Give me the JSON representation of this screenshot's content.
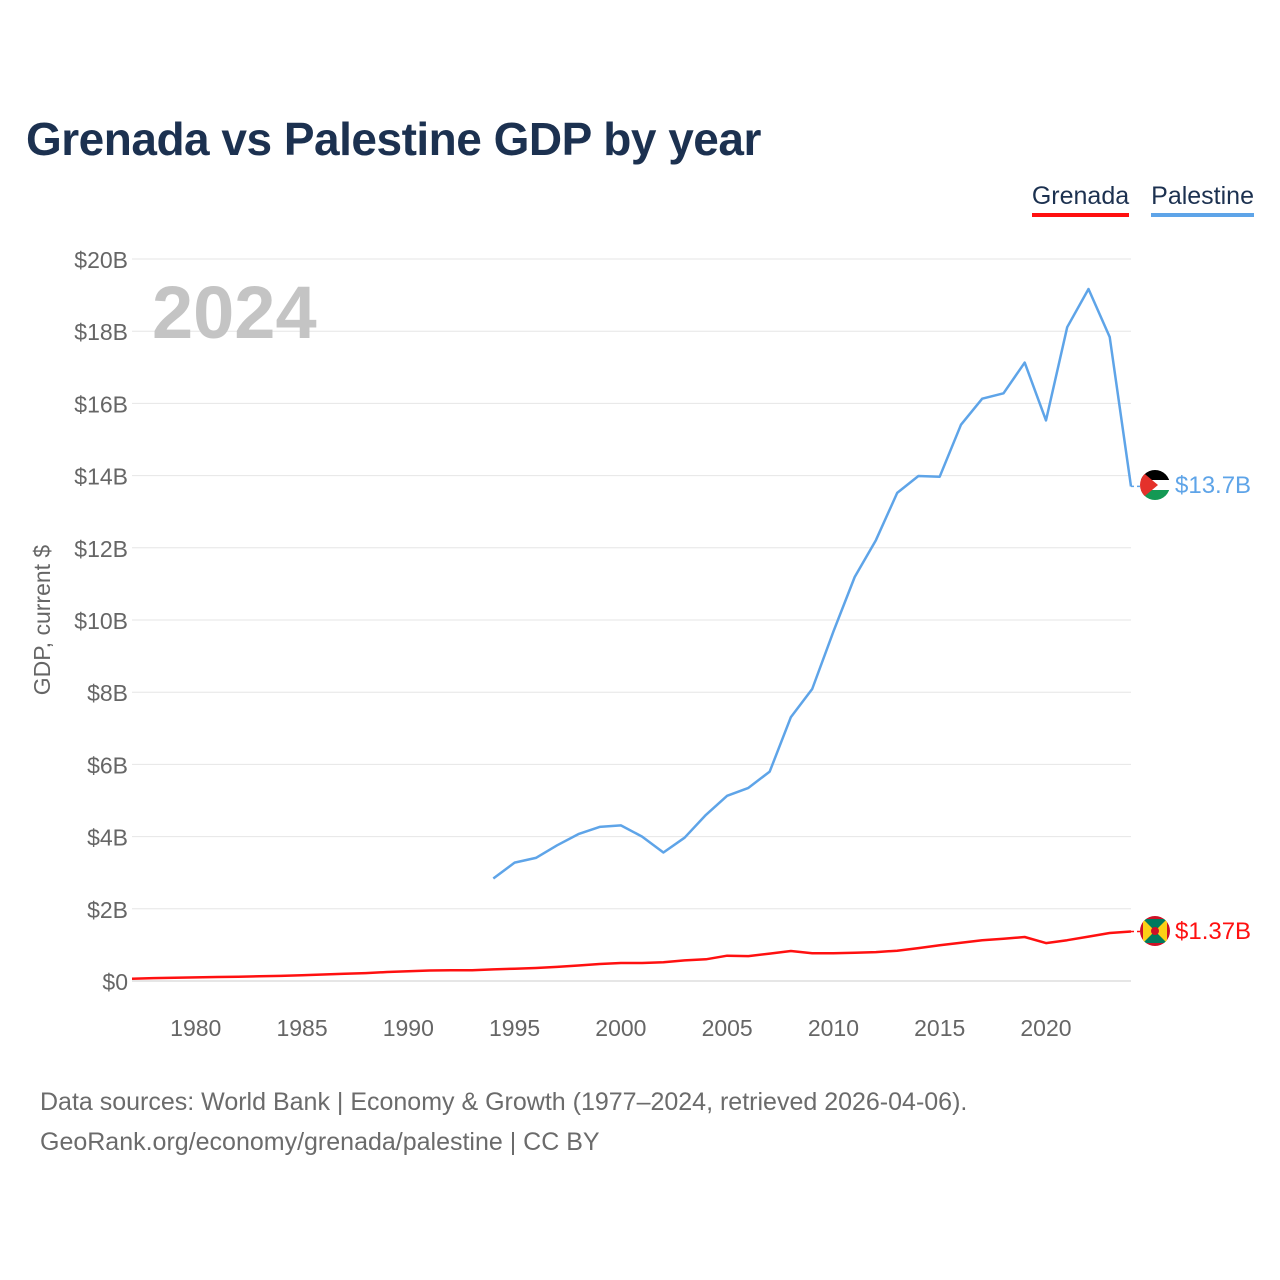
{
  "title": "Grenada vs Palestine GDP by year",
  "legend": {
    "grenada_label": "Grenada",
    "palestine_label": "Palestine"
  },
  "source": {
    "line1": "Data sources: World Bank | Economy & Growth (1977–2024, retrieved 2026-04-06).",
    "line2": "GeoRank.org/economy/grenada/palestine | CC BY"
  },
  "colors": {
    "grenada": "#ff1010",
    "palestine": "#5ea4e8",
    "title": "#1c3150",
    "grid": "#e6e6e6",
    "axis_text": "#666666",
    "year": "#c4c4c4"
  },
  "chart_data": {
    "type": "line",
    "title": "Grenada vs Palestine GDP by year",
    "xlabel": "",
    "ylabel": "GDP, current $",
    "year_label": "2024",
    "xlim": [
      1977,
      2024
    ],
    "ylim": [
      0,
      20
    ],
    "x_ticks": [
      1980,
      1985,
      1990,
      1995,
      2000,
      2005,
      2010,
      2015,
      2020
    ],
    "y_ticks": [
      0,
      2,
      4,
      6,
      8,
      10,
      12,
      14,
      16,
      18,
      20
    ],
    "y_tick_labels": [
      "$0",
      "$2B",
      "$4B",
      "$6B",
      "$8B",
      "$10B",
      "$12B",
      "$14B",
      "$16B",
      "$18B",
      "$20B"
    ],
    "grid": true,
    "series": [
      {
        "name": "Grenada",
        "key": "grenada",
        "end_label": "$1.37B",
        "flag": "grenada-flag-icon",
        "x": [
          1977,
          1978,
          1979,
          1980,
          1981,
          1982,
          1983,
          1984,
          1985,
          1986,
          1987,
          1988,
          1989,
          1990,
          1991,
          1992,
          1993,
          1994,
          1995,
          1996,
          1997,
          1998,
          1999,
          2000,
          2001,
          2002,
          2003,
          2004,
          2005,
          2006,
          2007,
          2008,
          2009,
          2010,
          2011,
          2012,
          2013,
          2014,
          2015,
          2016,
          2017,
          2018,
          2019,
          2020,
          2021,
          2022,
          2023,
          2024
        ],
        "values": [
          0.06,
          0.08,
          0.09,
          0.1,
          0.11,
          0.12,
          0.13,
          0.14,
          0.16,
          0.18,
          0.2,
          0.22,
          0.25,
          0.27,
          0.29,
          0.3,
          0.3,
          0.32,
          0.34,
          0.36,
          0.39,
          0.43,
          0.47,
          0.5,
          0.5,
          0.52,
          0.57,
          0.6,
          0.7,
          0.69,
          0.76,
          0.83,
          0.77,
          0.77,
          0.78,
          0.8,
          0.84,
          0.91,
          0.99,
          1.06,
          1.13,
          1.17,
          1.22,
          1.05,
          1.13,
          1.23,
          1.33,
          1.37
        ]
      },
      {
        "name": "Palestine",
        "key": "palestine",
        "end_label": "$13.7B",
        "flag": "palestine-flag-icon",
        "x": [
          1994,
          1995,
          1996,
          1997,
          1998,
          1999,
          2000,
          2001,
          2002,
          2003,
          2004,
          2005,
          2006,
          2007,
          2008,
          2009,
          2010,
          2011,
          2012,
          2013,
          2014,
          2015,
          2016,
          2017,
          2018,
          2019,
          2020,
          2021,
          2022,
          2023,
          2024
        ],
        "values": [
          2.84,
          3.28,
          3.41,
          3.76,
          4.07,
          4.27,
          4.31,
          4.0,
          3.56,
          3.97,
          4.6,
          5.13,
          5.35,
          5.8,
          7.31,
          8.09,
          9.68,
          11.19,
          12.21,
          13.52,
          13.99,
          13.97,
          15.41,
          16.13,
          16.28,
          17.13,
          15.53,
          18.11,
          19.17,
          17.84,
          13.7
        ]
      }
    ]
  }
}
